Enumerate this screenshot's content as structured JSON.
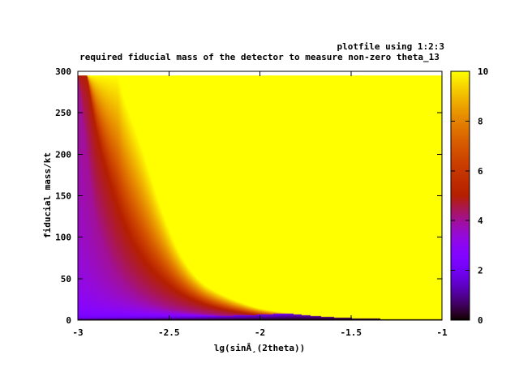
{
  "chart_data": {
    "type": "heatmap",
    "title": "required fiducial mass of the detector to measure non-zero theta_13",
    "key_title": "plotfile using 1:2:3",
    "xlabel": "lg(sinÂ¸(2theta))",
    "ylabel": "fiducial mass/kt",
    "xlim": [
      -3,
      -1
    ],
    "ylim": [
      0,
      300
    ],
    "data_xlim": [
      -3,
      -1
    ],
    "data_ylim": [
      0,
      295
    ],
    "x_ticks": [
      -3,
      -2.5,
      -2,
      -1.5,
      -1
    ],
    "x_tick_labels": [
      "-3",
      "-2.5",
      "-2",
      "-1.5",
      "-1"
    ],
    "y_ticks": [
      0,
      50,
      100,
      150,
      200,
      250,
      300
    ],
    "y_tick_labels": [
      "0",
      "50",
      "100",
      "150",
      "200",
      "250",
      "300"
    ],
    "colorbar": {
      "range": [
        0,
        10
      ],
      "ticks": [
        0,
        2,
        4,
        6,
        8,
        10
      ],
      "tick_labels": [
        "0",
        "2",
        "4",
        "6",
        "8",
        "10"
      ],
      "palette": "black-blue-purple-red-orange-yellow"
    },
    "contours": [
      {
        "level": 2,
        "points": [
          [
            -3.0,
            2.5
          ],
          [
            -2.8,
            3
          ],
          [
            -2.6,
            3.5
          ],
          [
            -2.4,
            4
          ],
          [
            -2.2,
            5
          ],
          [
            -2.0,
            6.5
          ],
          [
            -1.8,
            9
          ]
        ]
      },
      {
        "level": 4,
        "points": [
          [
            -3.0,
            295
          ],
          [
            -2.95,
            200
          ],
          [
            -2.9,
            120
          ],
          [
            -2.8,
            60
          ],
          [
            -2.7,
            35
          ],
          [
            -2.6,
            22
          ],
          [
            -2.5,
            14
          ],
          [
            -2.4,
            10
          ],
          [
            -2.3,
            7
          ],
          [
            -2.2,
            5
          ],
          [
            -2.0,
            3
          ],
          [
            -1.8,
            2
          ],
          [
            -1.5,
            1
          ]
        ]
      },
      {
        "level": 5,
        "points": [
          [
            -2.95,
            295
          ],
          [
            -2.9,
            230
          ],
          [
            -2.8,
            150
          ],
          [
            -2.7,
            95
          ],
          [
            -2.6,
            62
          ],
          [
            -2.5,
            42
          ],
          [
            -2.4,
            28
          ],
          [
            -2.3,
            19
          ],
          [
            -2.2,
            13
          ],
          [
            -2.1,
            9
          ],
          [
            -2.0,
            6
          ],
          [
            -1.8,
            3.5
          ],
          [
            -1.6,
            2
          ],
          [
            -1.4,
            1.2
          ],
          [
            -1.2,
            0.8
          ]
        ]
      },
      {
        "level": 10,
        "points": [
          [
            -2.78,
            295
          ],
          [
            -2.75,
            270
          ],
          [
            -2.7,
            240
          ],
          [
            -2.65,
            210
          ],
          [
            -2.6,
            175
          ],
          [
            -2.55,
            140
          ],
          [
            -2.5,
            110
          ],
          [
            -2.45,
            85
          ],
          [
            -2.4,
            66
          ],
          [
            -2.35,
            52
          ],
          [
            -2.3,
            42
          ],
          [
            -2.2,
            30
          ],
          [
            -2.1,
            21
          ],
          [
            -2.0,
            14
          ],
          [
            -1.9,
            10
          ],
          [
            -1.8,
            7
          ],
          [
            -1.7,
            5
          ],
          [
            -1.6,
            3.5
          ],
          [
            -1.5,
            2.5
          ],
          [
            -1.4,
            1.8
          ],
          [
            -1.3,
            1.3
          ],
          [
            -1.2,
            1
          ],
          [
            -1.0,
            0.6
          ]
        ]
      }
    ]
  }
}
